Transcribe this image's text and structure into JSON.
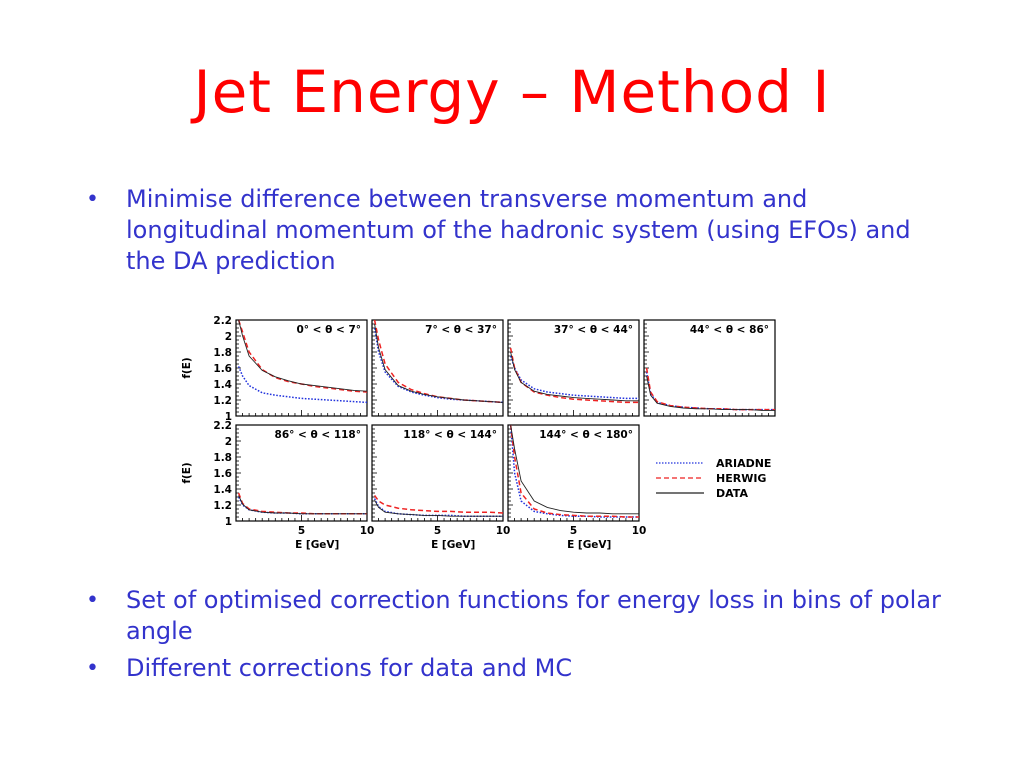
{
  "slide": {
    "title": "Jet Energy – Method I",
    "bullets_top": [
      "Minimise difference between transverse momentum and longitudinal momentum of the hadronic system (using EFOs) and the DA prediction"
    ],
    "bullets_bottom": [
      "Set of optimised correction functions for energy loss in bins of polar angle",
      "Different corrections for data and MC"
    ],
    "bullet_glyph": "•"
  },
  "colors": {
    "title": "#ff0000",
    "text": "#3333cc",
    "ariadne": "#2233dd",
    "herwig": "#ee2222",
    "data": "#222222"
  },
  "chart_data": {
    "type": "line",
    "ylabel": "f(E)",
    "xlabel": "E [GeV]",
    "xlim": [
      0,
      10
    ],
    "ylim": [
      1,
      2.2
    ],
    "xticks": [
      5,
      10
    ],
    "yticks": [
      1,
      1.2,
      1.4,
      1.6,
      1.8,
      2,
      2.2
    ],
    "legend": {
      "placement": "right",
      "entries": [
        {
          "name": "ARIADNE",
          "style": "dotted",
          "color": "#2233dd"
        },
        {
          "name": "HERWIG",
          "style": "dashed",
          "color": "#ee2222"
        },
        {
          "name": "DATA",
          "style": "solid",
          "color": "#222222"
        }
      ]
    },
    "x": [
      0.2,
      0.5,
      1,
      2,
      3,
      4,
      5,
      6,
      7,
      8,
      9,
      10
    ],
    "panels": [
      {
        "label": "0° < θ < 7°",
        "series": [
          {
            "name": "ARIADNE",
            "values": [
              1.62,
              1.5,
              1.38,
              1.29,
              1.26,
              1.24,
              1.22,
              1.21,
              1.2,
              1.19,
              1.18,
              1.17
            ]
          },
          {
            "name": "HERWIG",
            "values": [
              2.2,
              2.05,
              1.8,
              1.58,
              1.48,
              1.43,
              1.4,
              1.37,
              1.35,
              1.33,
              1.31,
              1.3
            ]
          },
          {
            "name": "DATA",
            "values": [
              2.2,
              2.0,
              1.75,
              1.57,
              1.49,
              1.44,
              1.4,
              1.38,
              1.36,
              1.34,
              1.32,
              1.31
            ]
          }
        ]
      },
      {
        "label": "7° < θ < 37°",
        "series": [
          {
            "name": "ARIADNE",
            "values": [
              2.1,
              1.8,
              1.55,
              1.37,
              1.3,
              1.26,
              1.23,
              1.21,
              1.2,
              1.19,
              1.18,
              1.17
            ]
          },
          {
            "name": "HERWIG",
            "values": [
              2.2,
              1.95,
              1.65,
              1.42,
              1.33,
              1.28,
              1.24,
              1.22,
              1.2,
              1.19,
              1.18,
              1.17
            ]
          },
          {
            "name": "DATA",
            "values": [
              2.15,
              1.85,
              1.58,
              1.38,
              1.31,
              1.27,
              1.24,
              1.22,
              1.2,
              1.19,
              1.18,
              1.17
            ]
          }
        ]
      },
      {
        "label": "37° < θ < 44°",
        "series": [
          {
            "name": "ARIADNE",
            "values": [
              1.75,
              1.6,
              1.45,
              1.34,
              1.3,
              1.28,
              1.26,
              1.25,
              1.24,
              1.23,
              1.22,
              1.22
            ]
          },
          {
            "name": "HERWIG",
            "values": [
              1.85,
              1.6,
              1.42,
              1.3,
              1.26,
              1.23,
              1.21,
              1.2,
              1.19,
              1.18,
              1.17,
              1.17
            ]
          },
          {
            "name": "DATA",
            "values": [
              1.8,
              1.58,
              1.42,
              1.31,
              1.27,
              1.25,
              1.23,
              1.22,
              1.21,
              1.2,
              1.19,
              1.19
            ]
          }
        ]
      },
      {
        "label": "44° < θ < 86°",
        "series": [
          {
            "name": "ARIADNE",
            "values": [
              1.55,
              1.28,
              1.17,
              1.13,
              1.11,
              1.1,
              1.09,
              1.09,
              1.08,
              1.08,
              1.08,
              1.08
            ]
          },
          {
            "name": "HERWIG",
            "values": [
              1.6,
              1.3,
              1.18,
              1.13,
              1.11,
              1.1,
              1.09,
              1.09,
              1.08,
              1.08,
              1.08,
              1.08
            ]
          },
          {
            "name": "DATA",
            "values": [
              1.5,
              1.26,
              1.16,
              1.12,
              1.1,
              1.09,
              1.09,
              1.08,
              1.08,
              1.08,
              1.07,
              1.07
            ]
          }
        ]
      },
      {
        "label": "86° < θ < 118°",
        "series": [
          {
            "name": "ARIADNE",
            "values": [
              1.3,
              1.2,
              1.14,
              1.11,
              1.1,
              1.1,
              1.09,
              1.09,
              1.09,
              1.09,
              1.09,
              1.09
            ]
          },
          {
            "name": "HERWIG",
            "values": [
              1.35,
              1.22,
              1.15,
              1.12,
              1.11,
              1.1,
              1.1,
              1.09,
              1.09,
              1.09,
              1.09,
              1.09
            ]
          },
          {
            "name": "DATA",
            "values": [
              1.32,
              1.21,
              1.14,
              1.11,
              1.1,
              1.1,
              1.09,
              1.09,
              1.09,
              1.09,
              1.09,
              1.09
            ]
          }
        ]
      },
      {
        "label": "118° < θ < 144°",
        "series": [
          {
            "name": "ARIADNE",
            "values": [
              1.28,
              1.18,
              1.12,
              1.09,
              1.08,
              1.07,
              1.07,
              1.07,
              1.06,
              1.06,
              1.06,
              1.06
            ]
          },
          {
            "name": "HERWIG",
            "values": [
              1.32,
              1.25,
              1.2,
              1.16,
              1.14,
              1.13,
              1.12,
              1.12,
              1.11,
              1.11,
              1.11,
              1.1
            ]
          },
          {
            "name": "DATA",
            "values": [
              1.26,
              1.17,
              1.11,
              1.09,
              1.08,
              1.07,
              1.07,
              1.06,
              1.06,
              1.06,
              1.06,
              1.06
            ]
          }
        ]
      },
      {
        "label": "144° < θ < 180°",
        "series": [
          {
            "name": "ARIADNE",
            "values": [
              2.2,
              1.6,
              1.25,
              1.12,
              1.09,
              1.07,
              1.06,
              1.06,
              1.05,
              1.05,
              1.05,
              1.05
            ]
          },
          {
            "name": "HERWIG",
            "values": [
              2.2,
              1.8,
              1.35,
              1.15,
              1.1,
              1.08,
              1.07,
              1.06,
              1.06,
              1.06,
              1.05,
              1.05
            ]
          },
          {
            "name": "DATA",
            "values": [
              2.2,
              1.9,
              1.5,
              1.25,
              1.17,
              1.13,
              1.11,
              1.1,
              1.1,
              1.09,
              1.09,
              1.09
            ]
          }
        ]
      }
    ]
  }
}
